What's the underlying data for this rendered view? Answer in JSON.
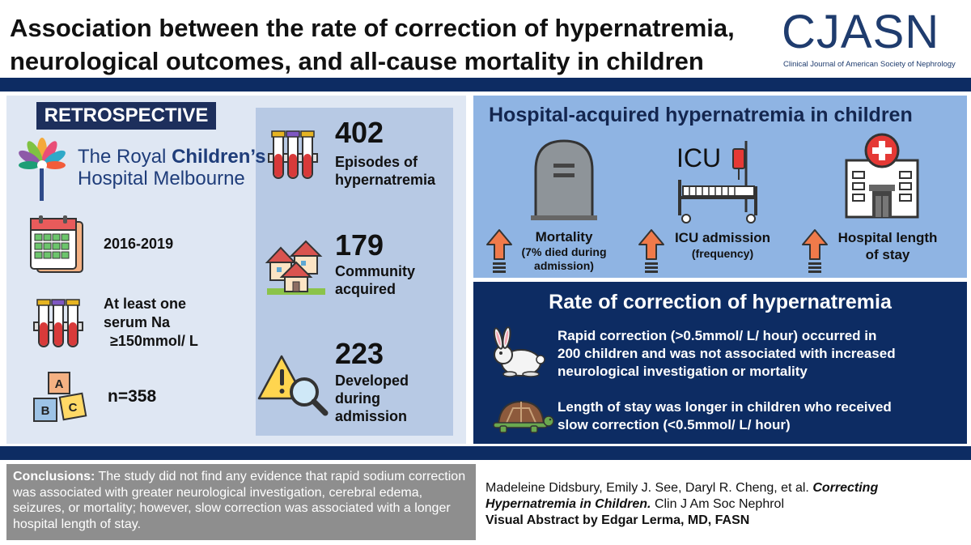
{
  "header": {
    "title_line1": "Association between the rate of correction of hypernatremia,",
    "title_line2": "neurological outcomes, and all-cause mortality in children",
    "logo_text": "CJASN",
    "logo_subtitle": "Clinical Journal of American Society of Nephrology"
  },
  "study": {
    "design_badge": "RETROSPECTIVE",
    "institution_line1_a": "The Royal ",
    "institution_line1_b": "Children’s",
    "institution_line2": "Hospital Melbourne",
    "period": "2016-2019",
    "criteria_line1": "At least one",
    "criteria_line2": "serum Na",
    "criteria_line3": "≥150mmol/ L",
    "sample": "n=358",
    "block_letters": [
      "A",
      "B",
      "C"
    ]
  },
  "stats": [
    {
      "value": "402",
      "label_lines": [
        "Episodes of",
        "hypernatremia"
      ]
    },
    {
      "value": "179",
      "label_lines": [
        "Community",
        "acquired"
      ]
    },
    {
      "value": "223",
      "label_lines": [
        "Developed",
        "during",
        "admission"
      ]
    }
  ],
  "hospital": {
    "title": "Hospital-acquired hypernatremia in children",
    "icu_sign": "ICU",
    "outcomes": [
      {
        "label": "Mortality",
        "note_lines": [
          "(7% died during",
          "admission)"
        ]
      },
      {
        "label": "ICU admission",
        "note_lines": [
          "(frequency)"
        ]
      },
      {
        "label_lines": [
          "Hospital length",
          "of stay"
        ]
      }
    ]
  },
  "rate": {
    "title": "Rate of correction of hypernatremia",
    "rapid_lines": [
      "Rapid correction (>0.5mmol/ L/ hour) occurred in",
      "200 children and was not associated with increased",
      "neurological investigation or mortality"
    ],
    "slow_lines": [
      "Length of stay was longer in children who received",
      "slow  correction (<0.5mmol/ L/ hour)"
    ]
  },
  "conclusions": {
    "label": "Conclusions:",
    "text": " The study did not find any evidence that rapid sodium correction was associated with greater neurological investigation, cerebral edema, seizures, or mortality; however, slow correction was associated with a longer hospital length of stay."
  },
  "citation": {
    "authors": "Madeleine Didsbury, Emily J. See, Daryl R. Cheng, et al. ",
    "article": "Correcting Hypernatremia in Children.",
    "journal": " Clin J Am Soc Nephrol",
    "credit": "Visual Abstract by Edgar Lerma, MD, FASN"
  },
  "colors": {
    "navy": "#0d2c63",
    "light_panel": "#dfe7f3",
    "stats_panel": "#b7c9e4",
    "hospital_panel": "#8fb4e3",
    "arrow_orange": "#f07a4a",
    "conclusion_gray": "#8e8e8e"
  },
  "icons": [
    "tree-logo-icon",
    "calendar-icon",
    "test-tubes-icon",
    "alphabet-blocks-icon",
    "houses-icon",
    "warning-magnifier-icon",
    "tombstone-icon",
    "icu-bed-icon",
    "hospital-building-icon",
    "up-arrow-icon",
    "rabbit-icon",
    "turtle-icon"
  ]
}
